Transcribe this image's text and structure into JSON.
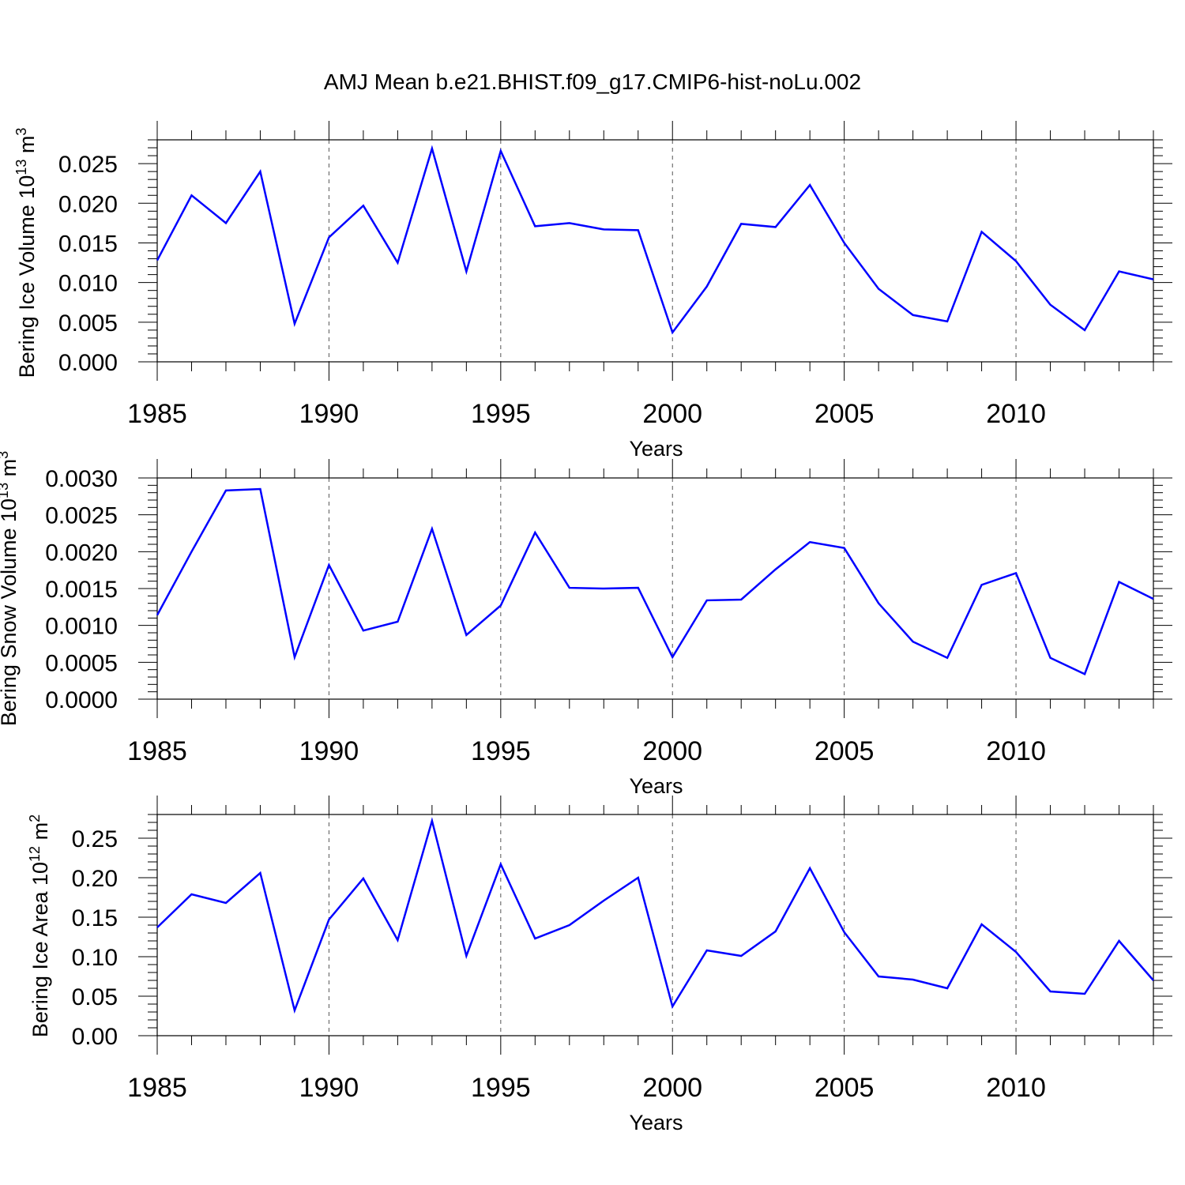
{
  "title": "AMJ Mean b.e21.BHIST.f09_g17.CMIP6-hist-noLu.002",
  "colors": {
    "line": "#0000ff",
    "axis": "#000000",
    "grid": "#555555"
  },
  "chart_data": [
    {
      "type": "line",
      "xlabel": "Years",
      "ylabel": {
        "prefix": "Bering Ice Volume 10",
        "sup1": "13",
        "mid": " m",
        "sup2": "3"
      },
      "xlim": [
        1985,
        2014
      ],
      "ylim": [
        0.0,
        0.028
      ],
      "xticks": [
        1985,
        1990,
        1995,
        2000,
        2005,
        2010
      ],
      "yticks": [
        0.0,
        0.005,
        0.01,
        0.015,
        0.02,
        0.025
      ],
      "ytick_labels": [
        "0.000",
        "0.005",
        "0.010",
        "0.015",
        "0.020",
        "0.025"
      ],
      "x": [
        1985,
        1986,
        1987,
        1988,
        1989,
        1990,
        1991,
        1992,
        1993,
        1994,
        1995,
        1996,
        1997,
        1998,
        1999,
        2000,
        2001,
        2002,
        2003,
        2004,
        2005,
        2006,
        2007,
        2008,
        2009,
        2010,
        2011,
        2012,
        2013,
        2014
      ],
      "values": [
        0.0128,
        0.021,
        0.0175,
        0.024,
        0.0048,
        0.0157,
        0.0197,
        0.0125,
        0.0269,
        0.0114,
        0.0266,
        0.0171,
        0.0175,
        0.0167,
        0.0166,
        0.0037,
        0.0095,
        0.0174,
        0.017,
        0.0223,
        0.015,
        0.0092,
        0.0059,
        0.0051,
        0.0164,
        0.0127,
        0.0072,
        0.004,
        0.0114,
        0.0104
      ]
    },
    {
      "type": "line",
      "xlabel": "Years",
      "ylabel": {
        "prefix": "Bering Snow Volume 10",
        "sup1": "13",
        "mid": " m",
        "sup2": "3"
      },
      "xlim": [
        1985,
        2014
      ],
      "ylim": [
        0.0,
        0.003
      ],
      "xticks": [
        1985,
        1990,
        1995,
        2000,
        2005,
        2010
      ],
      "yticks": [
        0.0,
        0.0005,
        0.001,
        0.0015,
        0.002,
        0.0025,
        0.003
      ],
      "ytick_labels": [
        "0.0000",
        "0.0005",
        "0.0010",
        "0.0015",
        "0.0020",
        "0.0025",
        "0.0030"
      ],
      "x": [
        1985,
        1986,
        1987,
        1988,
        1989,
        1990,
        1991,
        1992,
        1993,
        1994,
        1995,
        1996,
        1997,
        1998,
        1999,
        2000,
        2001,
        2002,
        2003,
        2004,
        2005,
        2006,
        2007,
        2008,
        2009,
        2010,
        2011,
        2012,
        2013,
        2014
      ],
      "values": [
        0.00114,
        0.002,
        0.00283,
        0.00285,
        0.00057,
        0.00182,
        0.00093,
        0.00105,
        0.00231,
        0.00087,
        0.00127,
        0.00226,
        0.00151,
        0.0015,
        0.00151,
        0.00057,
        0.00134,
        0.00135,
        0.00176,
        0.00213,
        0.00205,
        0.0013,
        0.00078,
        0.00056,
        0.00155,
        0.00171,
        0.00056,
        0.00034,
        0.00159,
        0.00136
      ]
    },
    {
      "type": "line",
      "xlabel": "Years",
      "ylabel": {
        "prefix": "Bering Ice Area 10",
        "sup1": "12",
        "mid": " m",
        "sup2": "2"
      },
      "xlim": [
        1985,
        2014
      ],
      "ylim": [
        0.0,
        0.28
      ],
      "xticks": [
        1985,
        1990,
        1995,
        2000,
        2005,
        2010
      ],
      "yticks": [
        0.0,
        0.05,
        0.1,
        0.15,
        0.2,
        0.25
      ],
      "ytick_labels": [
        "0.00",
        "0.05",
        "0.10",
        "0.15",
        "0.20",
        "0.25"
      ],
      "x": [
        1985,
        1986,
        1987,
        1988,
        1989,
        1990,
        1991,
        1992,
        1993,
        1994,
        1995,
        1996,
        1997,
        1998,
        1999,
        2000,
        2001,
        2002,
        2003,
        2004,
        2005,
        2006,
        2007,
        2008,
        2009,
        2010,
        2011,
        2012,
        2013,
        2014
      ],
      "values": [
        0.137,
        0.179,
        0.168,
        0.206,
        0.032,
        0.147,
        0.199,
        0.121,
        0.272,
        0.101,
        0.217,
        0.123,
        0.14,
        0.171,
        0.2,
        0.037,
        0.108,
        0.101,
        0.132,
        0.212,
        0.131,
        0.075,
        0.071,
        0.06,
        0.141,
        0.106,
        0.056,
        0.053,
        0.12,
        0.07
      ]
    }
  ]
}
